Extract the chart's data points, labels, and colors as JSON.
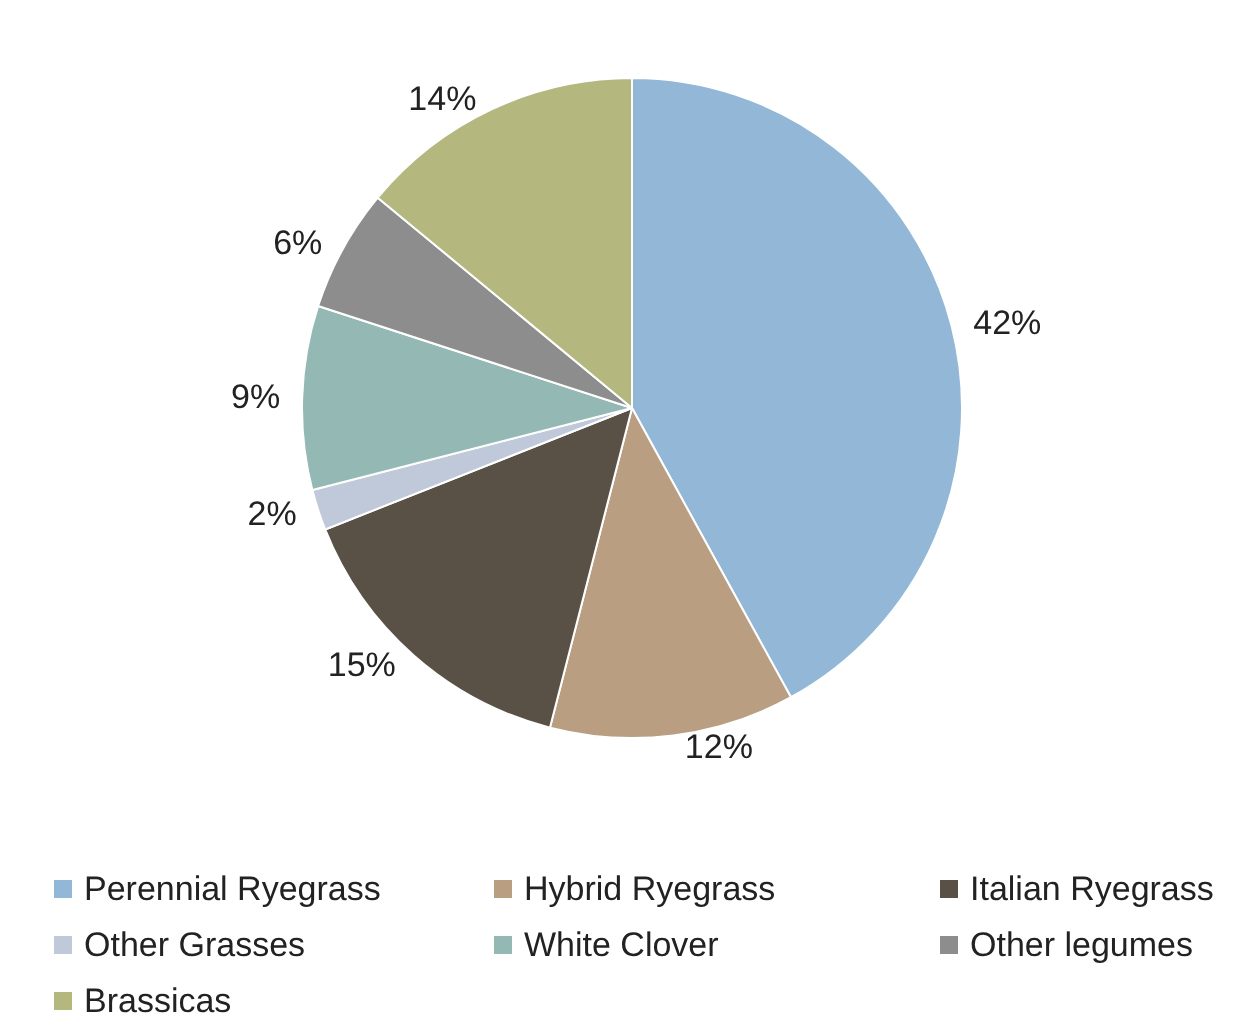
{
  "chart_data": {
    "type": "pie",
    "categories": [
      "Perennial Ryegrass",
      "Hybrid Ryegrass",
      "Italian Ryegrass",
      "Other Grasses",
      "White Clover",
      "Other legumes",
      "Brassicas"
    ],
    "values": [
      42,
      12,
      15,
      2,
      9,
      6,
      14
    ],
    "value_labels": [
      "42%",
      "12%",
      "15%",
      "2%",
      "9%",
      "6%",
      "14%"
    ],
    "colors": [
      "#93b7d6",
      "#b99e82",
      "#5a5146",
      "#c0c9d9",
      "#94b9b4",
      "#8d8d8d",
      "#b4b87e"
    ],
    "legend": "bottom"
  }
}
